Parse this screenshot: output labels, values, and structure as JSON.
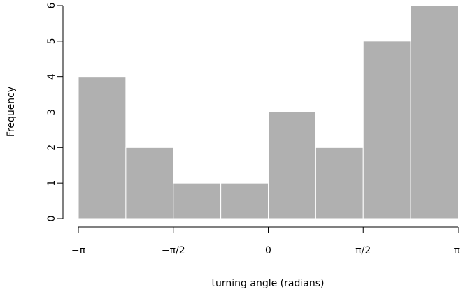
{
  "chart_data": {
    "type": "bar",
    "title": "",
    "xlabel": "turning angle (radians)",
    "ylabel": "Frequency",
    "categories": [
      "-π to -3π/4",
      "-3π/4 to -π/2",
      "-π/2 to -π/4",
      "-π/4 to 0",
      "0 to π/4",
      "π/4 to π/2",
      "π/2 to 3π/4",
      "3π/4 to π"
    ],
    "bin_edges": [
      -3.14159,
      -2.35619,
      -1.5708,
      -0.7854,
      0,
      0.7854,
      1.5708,
      2.35619,
      3.14159
    ],
    "values": [
      4,
      2,
      1,
      1,
      3,
      2,
      5,
      6
    ],
    "ylim": [
      0,
      6
    ],
    "xlim": [
      -3.14159,
      3.14159
    ],
    "yticks": [
      0,
      1,
      2,
      3,
      4,
      5,
      6
    ],
    "xticks": [
      {
        "value": -3.14159,
        "label": "−π"
      },
      {
        "value": -1.5708,
        "label": "−π/2"
      },
      {
        "value": 0,
        "label": "0"
      },
      {
        "value": 1.5708,
        "label": "π/2"
      },
      {
        "value": 3.14159,
        "label": "π"
      }
    ],
    "bar_color": "#b0b0b0",
    "bar_edge_color": "#ffffff",
    "grid": false
  }
}
